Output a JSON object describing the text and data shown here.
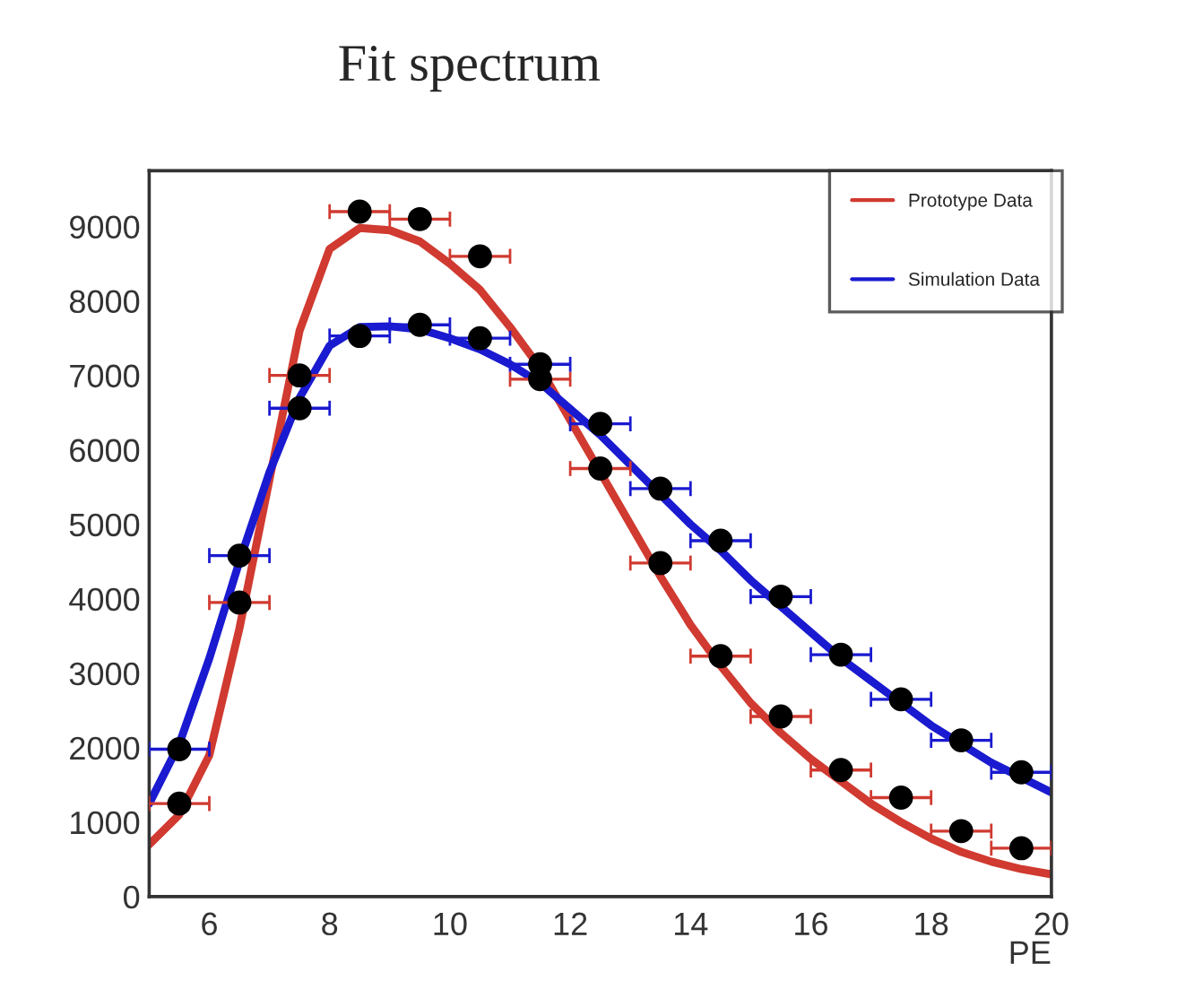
{
  "chart_data": {
    "type": "line",
    "title": "Fit spectrum",
    "xlabel": "PE",
    "xlim": [
      5,
      20
    ],
    "xticks": [
      6,
      8,
      10,
      12,
      14,
      16,
      18,
      20
    ],
    "ylim": [
      0,
      9750
    ],
    "yticks": [
      0,
      1000,
      2000,
      3000,
      4000,
      5000,
      6000,
      7000,
      8000,
      9000
    ],
    "grid": false,
    "legend": "top right",
    "series": [
      {
        "name": "Prototype Data",
        "color": "#d03a30",
        "x": [
          5,
          5.5,
          6,
          6.5,
          7,
          7.5,
          8,
          8.5,
          9,
          9.5,
          10,
          10.5,
          11,
          11.5,
          12,
          12.5,
          13,
          13.5,
          14,
          14.5,
          15,
          15.5,
          16,
          16.5,
          17,
          17.5,
          18,
          18.5,
          19,
          19.5,
          20
        ],
        "values": [
          700,
          1100,
          1900,
          3600,
          5600,
          7600,
          8700,
          8980,
          8950,
          8800,
          8500,
          8150,
          7650,
          7100,
          6400,
          5700,
          5000,
          4300,
          3650,
          3100,
          2600,
          2200,
          1850,
          1550,
          1250,
          1000,
          780,
          600,
          470,
          370,
          300
        ]
      },
      {
        "name": "Simulation Data",
        "color": "#1a1ad0",
        "x": [
          5,
          5.5,
          6,
          6.5,
          7,
          7.5,
          8,
          8.5,
          9,
          9.5,
          10,
          10.5,
          11,
          11.5,
          12,
          12.5,
          13,
          13.5,
          14,
          14.5,
          15,
          15.5,
          16,
          16.5,
          17,
          17.5,
          18,
          18.5,
          19,
          19.5,
          20
        ],
        "values": [
          1250,
          2050,
          3200,
          4500,
          5700,
          6700,
          7400,
          7650,
          7660,
          7620,
          7500,
          7350,
          7150,
          6900,
          6550,
          6200,
          5800,
          5400,
          5000,
          4650,
          4250,
          3900,
          3550,
          3200,
          2900,
          2600,
          2300,
          2050,
          1800,
          1600,
          1400
        ]
      },
      {
        "type": "scatter",
        "color": "#000000",
        "marker": "circle",
        "x": [
          5.5,
          6.5,
          7.5,
          8.5,
          9.5,
          10.5,
          11.5,
          12.5,
          13.5,
          14.5,
          15.5,
          16.5,
          17.5,
          18.5,
          19.5
        ],
        "values": [
          1250,
          3950,
          7000,
          9200,
          9100,
          8600,
          6950,
          5750,
          4480,
          3230,
          2420,
          1700,
          1330,
          880,
          650
        ],
        "xerrors": [
          0.5,
          0.5,
          0.5,
          0.5,
          0.5,
          0.5,
          0.5,
          0.5,
          0.5,
          0.5,
          0.5,
          0.5,
          0.5,
          0.5,
          0.5
        ]
      },
      {
        "type": "scatter",
        "color": "#000000",
        "marker": "circle",
        "x": [
          5.5,
          6.5,
          7.5,
          8.5,
          9.5,
          10.5,
          11.5,
          12.5,
          13.5,
          14.5,
          15.5,
          16.5,
          17.5,
          18.5,
          19.5
        ],
        "values": [
          1980,
          4580,
          6560,
          7530,
          7680,
          7500,
          7150,
          6350,
          5480,
          4780,
          4030,
          3250,
          2650,
          2100,
          1670
        ],
        "xerrors": [
          0.5,
          0.5,
          0.5,
          0.5,
          0.5,
          0.5,
          0.5,
          0.5,
          0.5,
          0.5,
          0.5,
          0.5,
          0.5,
          0.5,
          0.5
        ]
      }
    ]
  }
}
